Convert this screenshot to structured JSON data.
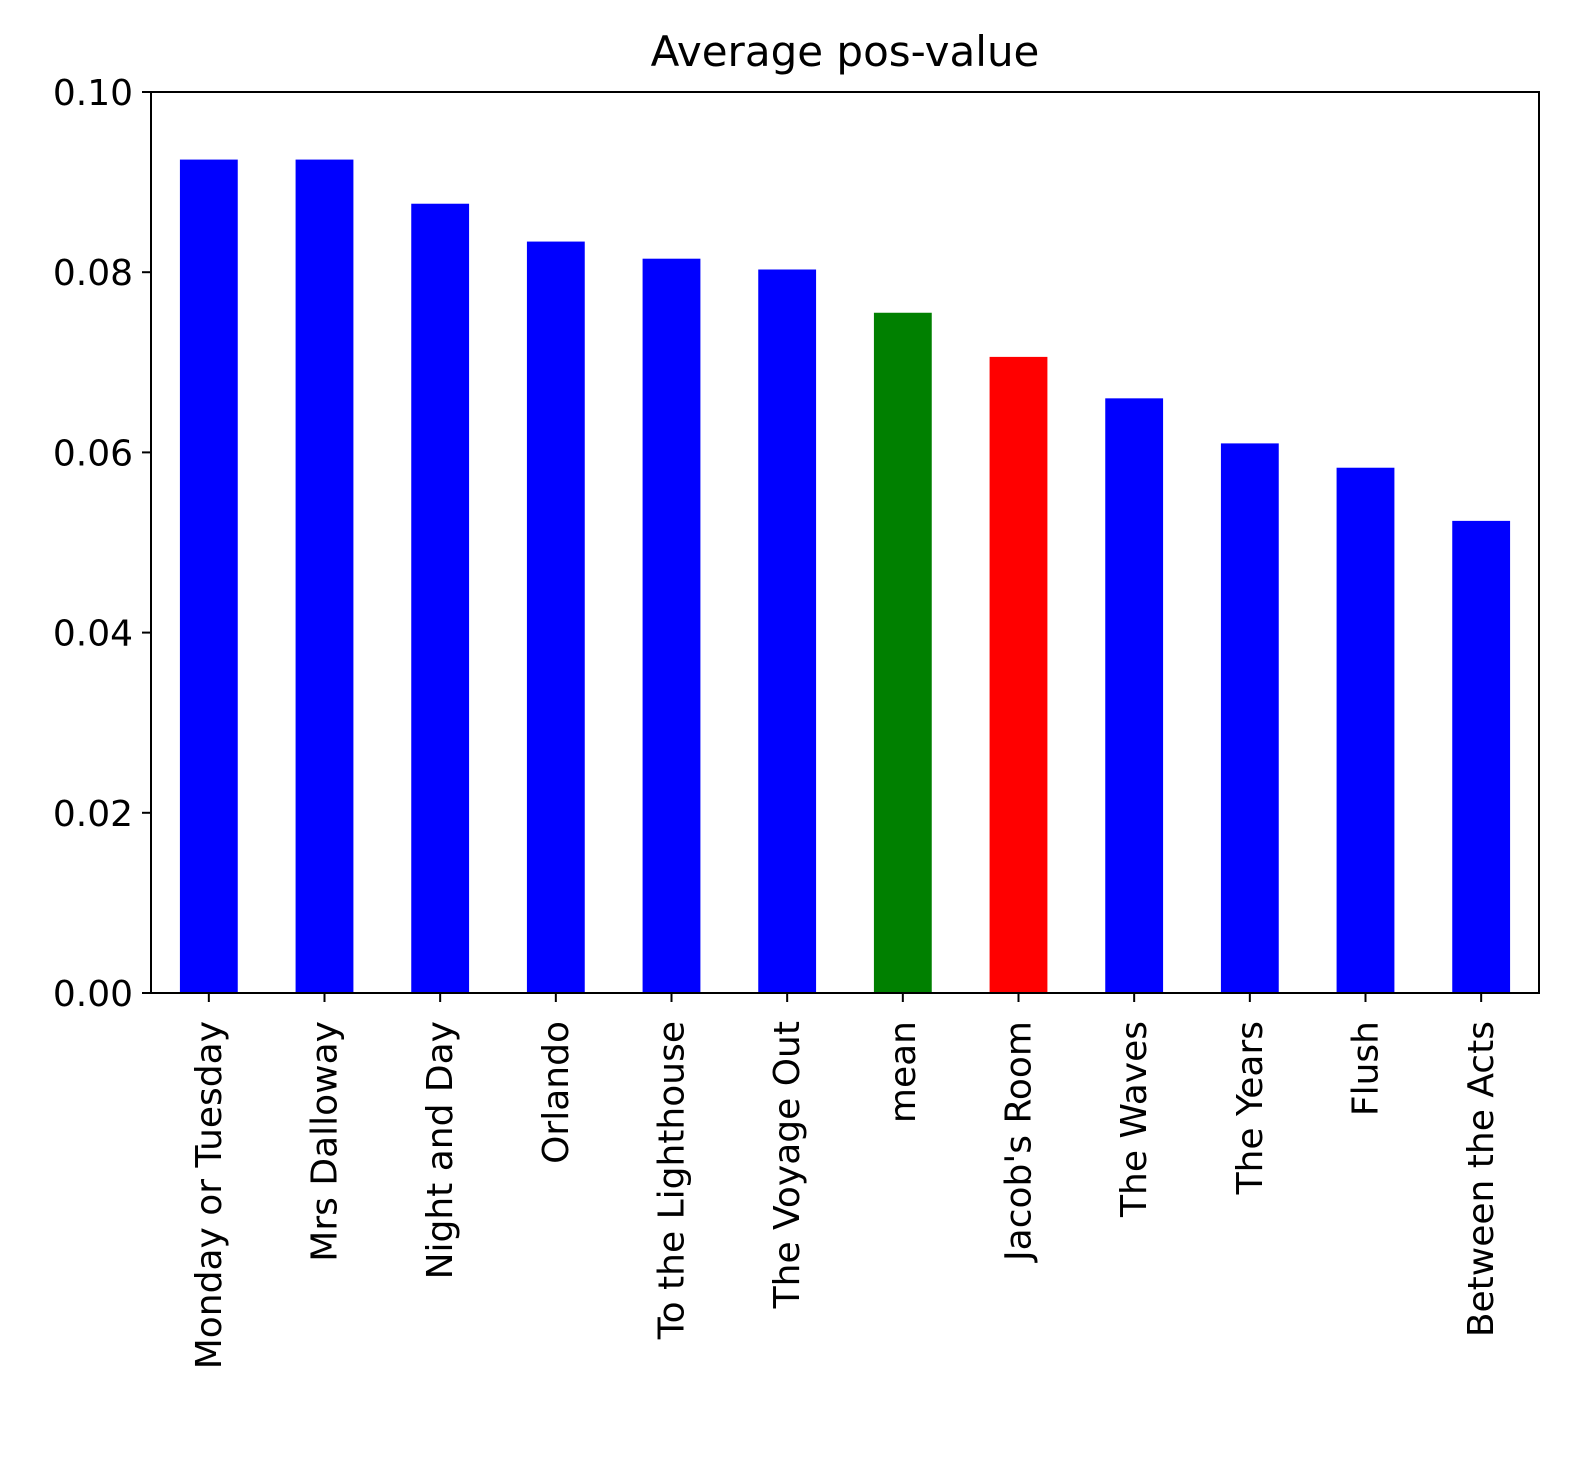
{
  "chart_data": {
    "type": "bar",
    "title": "Average pos-value",
    "xlabel": "",
    "ylabel": "",
    "ylim": [
      0,
      0.1
    ],
    "yticks": [
      "0.00",
      "0.02",
      "0.04",
      "0.06",
      "0.08",
      "0.10"
    ],
    "grid": false,
    "legend": "none",
    "categories": [
      "Monday or Tuesday",
      "Mrs Dalloway",
      "Night and Day",
      "Orlando",
      "To the Lighthouse",
      "The Voyage Out",
      "mean",
      "Jacob's Room",
      "The Waves",
      "The Years",
      "Flush",
      "Between the Acts"
    ],
    "values": [
      0.0925,
      0.0925,
      0.0876,
      0.0834,
      0.0815,
      0.0803,
      0.0755,
      0.0706,
      0.066,
      0.061,
      0.0583,
      0.0524
    ],
    "colors": [
      "#0000ff",
      "#0000ff",
      "#0000ff",
      "#0000ff",
      "#0000ff",
      "#0000ff",
      "#008000",
      "#ff0000",
      "#0000ff",
      "#0000ff",
      "#0000ff",
      "#0000ff"
    ]
  }
}
